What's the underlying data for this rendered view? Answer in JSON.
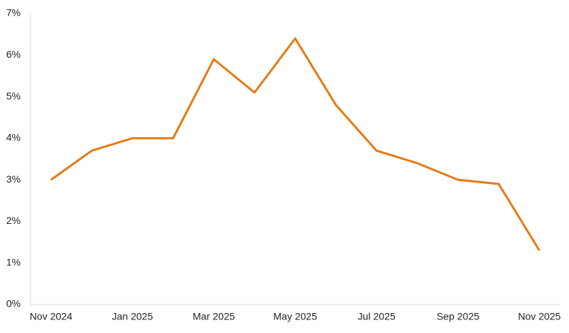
{
  "chart_data": {
    "type": "line",
    "categories": [
      "Nov 2024",
      null,
      "Jan 2025",
      null,
      "Mar 2025",
      null,
      "May 2025",
      null,
      "Jul 2025",
      null,
      "Sep 2025",
      null,
      "Nov 2025"
    ],
    "series": [
      {
        "color": "#e57a12",
        "values": [
          3.0,
          3.7,
          4.0,
          4.0,
          5.9,
          5.1,
          6.4,
          4.8,
          3.7,
          3.4,
          3.0,
          2.9,
          1.3
        ]
      }
    ],
    "ylim": [
      0,
      7
    ],
    "yticks": [
      {
        "value": 0,
        "label": "0%"
      },
      {
        "value": 1,
        "label": "1%"
      },
      {
        "value": 2,
        "label": "2%"
      },
      {
        "value": 3,
        "label": "3%"
      },
      {
        "value": 4,
        "label": "4%"
      },
      {
        "value": 5,
        "label": "5%"
      },
      {
        "value": 6,
        "label": "6%"
      },
      {
        "value": 7,
        "label": "7%"
      }
    ],
    "grid": false
  }
}
